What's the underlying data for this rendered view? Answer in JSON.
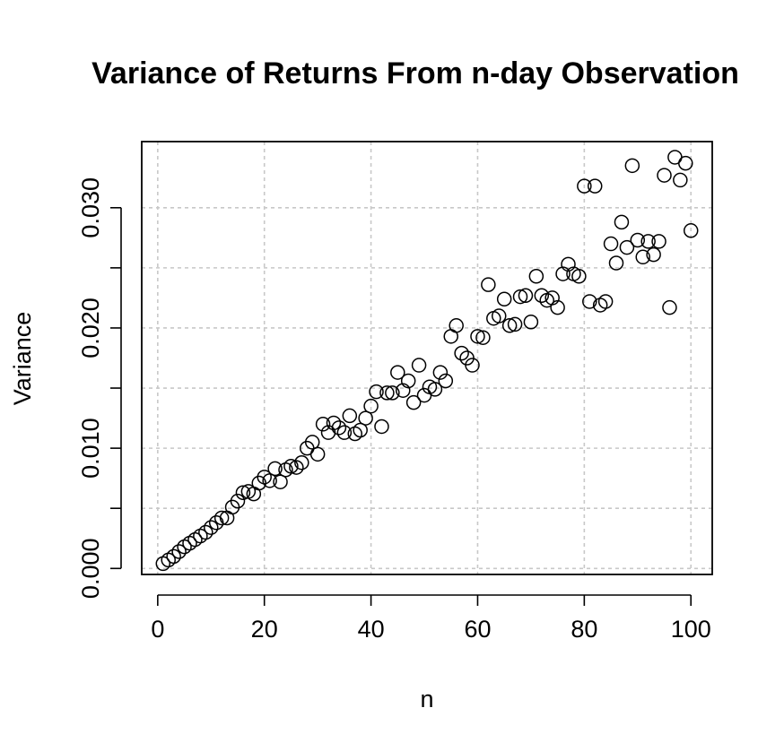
{
  "chart_data": {
    "type": "scatter",
    "title": "Variance of Returns From n-day Observation",
    "xlabel": "n",
    "ylabel": "Variance",
    "xlim": [
      -3,
      104
    ],
    "ylim": [
      -0.0005,
      0.0355
    ],
    "xticks": [
      0,
      20,
      40,
      60,
      80,
      100
    ],
    "yticks": [
      0.0,
      0.005,
      0.01,
      0.015,
      0.02,
      0.025,
      0.03
    ],
    "yticks_labeled": [
      "0.000",
      "0.010",
      "0.020",
      "0.030"
    ],
    "xtick_labels": [
      "0",
      "20",
      "40",
      "60",
      "80",
      "100"
    ],
    "grid": true,
    "marker": "open-circle",
    "x": [
      1,
      2,
      3,
      4,
      5,
      6,
      7,
      8,
      9,
      10,
      11,
      12,
      13,
      14,
      15,
      16,
      17,
      18,
      19,
      20,
      21,
      22,
      23,
      24,
      25,
      26,
      27,
      28,
      29,
      30,
      31,
      32,
      33,
      34,
      35,
      36,
      37,
      38,
      39,
      40,
      41,
      42,
      43,
      44,
      45,
      46,
      47,
      48,
      49,
      50,
      51,
      52,
      53,
      54,
      55,
      56,
      57,
      58,
      59,
      60,
      61,
      62,
      63,
      64,
      65,
      66,
      67,
      68,
      69,
      70,
      71,
      72,
      73,
      74,
      75,
      76,
      77,
      78,
      79,
      80,
      81,
      82,
      83,
      84,
      85,
      86,
      87,
      88,
      89,
      90,
      91,
      92,
      93,
      94,
      95,
      96,
      97,
      98,
      99,
      100
    ],
    "y": [
      0.0004,
      0.0007,
      0.001,
      0.0014,
      0.0018,
      0.0021,
      0.0024,
      0.0027,
      0.003,
      0.0034,
      0.0038,
      0.0042,
      0.0042,
      0.0051,
      0.0056,
      0.0063,
      0.0064,
      0.0062,
      0.0071,
      0.0076,
      0.0073,
      0.0083,
      0.0072,
      0.0082,
      0.0085,
      0.0084,
      0.0088,
      0.01,
      0.0105,
      0.0095,
      0.012,
      0.0113,
      0.0121,
      0.0117,
      0.0113,
      0.0127,
      0.0112,
      0.0115,
      0.0125,
      0.0135,
      0.0147,
      0.0118,
      0.0146,
      0.0146,
      0.0163,
      0.0148,
      0.0156,
      0.0138,
      0.0169,
      0.0144,
      0.0151,
      0.0149,
      0.0163,
      0.0156,
      0.0193,
      0.0202,
      0.0179,
      0.0175,
      0.0169,
      0.0193,
      0.0192,
      0.0236,
      0.0208,
      0.021,
      0.0224,
      0.0202,
      0.0203,
      0.0226,
      0.0227,
      0.0205,
      0.0243,
      0.0227,
      0.0223,
      0.0225,
      0.0217,
      0.0245,
      0.0253,
      0.0245,
      0.0243,
      0.0318,
      0.0222,
      0.0318,
      0.0219,
      0.0222,
      0.027,
      0.0254,
      0.0288,
      0.0267,
      0.0335,
      0.0273,
      0.0259,
      0.0272,
      0.0261,
      0.0272,
      0.0327,
      0.0217,
      0.0342,
      0.0323,
      0.0337,
      0.0281
    ]
  }
}
